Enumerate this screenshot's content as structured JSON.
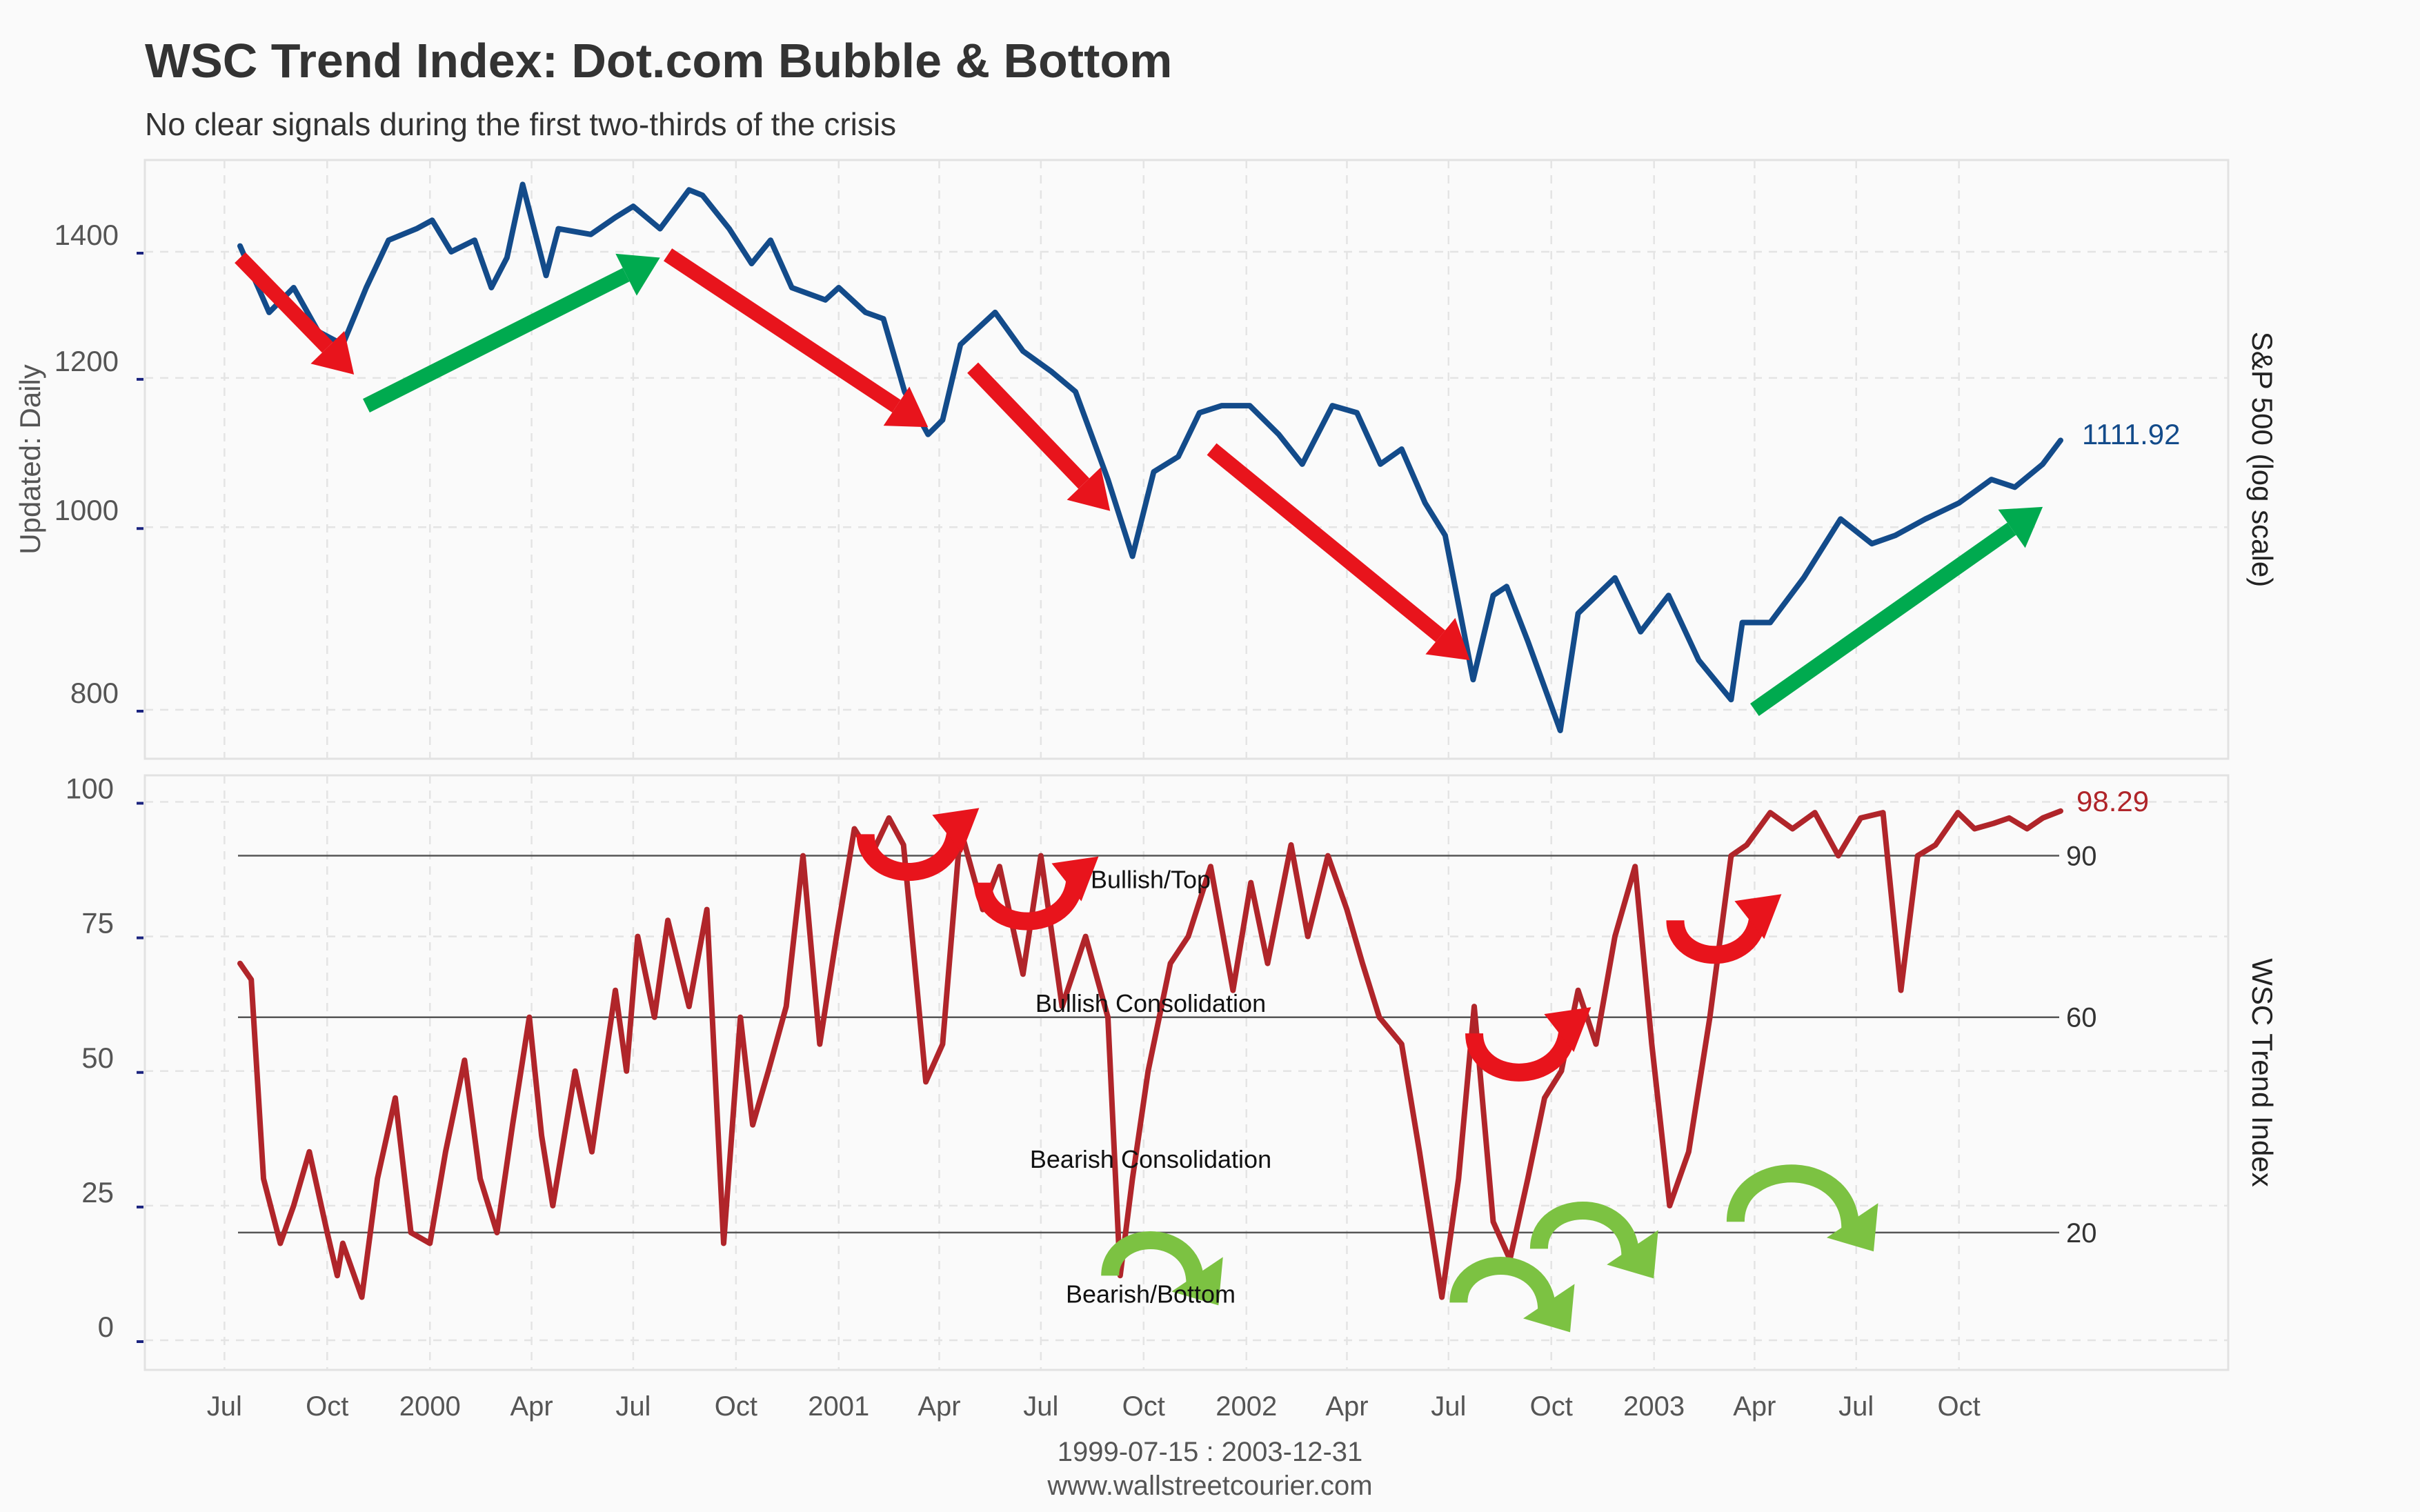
{
  "title": "WSC Trend Index: Dot.com Bubble & Bottom",
  "subtitle": "No clear signals during the first two-thirds of the crisis",
  "footer": {
    "range": "1999-07-15 : 2003-12-31",
    "site": "www.wallstreetcourier.com"
  },
  "colors": {
    "sp500": "#134b8a",
    "trend_index": "#b0252a",
    "bear_arrow": "#e8141c",
    "bull_arrow": "#00aa4f",
    "bottom_arrow": "#7cc242",
    "grid": "#e4e4e4",
    "background": "#fafafa"
  },
  "chart_data": [
    {
      "type": "line",
      "panel": "top",
      "ylabel": "S&P 500 (log scale)",
      "left_label": "Updated: Daily",
      "log_scale": true,
      "ylim": [
        750,
        1550
      ],
      "yticks": [
        800,
        1000,
        1200,
        1400
      ],
      "last_value_label": "1111.92",
      "x_tick_labels": [
        "Jul",
        "Oct",
        "2000",
        "Apr",
        "Jul",
        "Oct",
        "2001",
        "Apr",
        "Jul",
        "Oct",
        "2002",
        "Apr",
        "Jul",
        "Oct",
        "2003",
        "Apr",
        "Jul",
        "Oct"
      ],
      "grid": true,
      "series": [
        {
          "name": "S&P 500",
          "x": [
            "1999-07-15",
            "1999-08-10",
            "1999-09-01",
            "1999-09-23",
            "1999-10-15",
            "1999-11-05",
            "1999-11-25",
            "1999-12-20",
            "2000-01-03",
            "2000-01-20",
            "2000-02-10",
            "2000-02-25",
            "2000-03-10",
            "2000-03-24",
            "2000-04-14",
            "2000-04-25",
            "2000-05-24",
            "2000-06-15",
            "2000-07-01",
            "2000-07-25",
            "2000-08-20",
            "2000-09-01",
            "2000-09-25",
            "2000-10-15",
            "2000-11-01",
            "2000-11-20",
            "2000-12-20",
            "2001-01-01",
            "2001-01-25",
            "2001-02-10",
            "2001-03-01",
            "2001-03-22",
            "2001-04-04",
            "2001-04-20",
            "2001-05-21",
            "2001-06-15",
            "2001-07-10",
            "2001-08-01",
            "2001-08-30",
            "2001-09-21",
            "2001-10-10",
            "2001-11-01",
            "2001-11-20",
            "2001-12-10",
            "2002-01-04",
            "2002-01-30",
            "2002-02-20",
            "2002-03-19",
            "2002-04-10",
            "2002-05-01",
            "2002-05-20",
            "2002-06-10",
            "2002-06-28",
            "2002-07-23",
            "2002-08-10",
            "2002-08-22",
            "2002-09-10",
            "2002-10-09",
            "2002-10-25",
            "2002-11-27",
            "2002-12-20",
            "2003-01-14",
            "2003-02-10",
            "2003-03-11",
            "2003-03-21",
            "2003-04-15",
            "2003-05-15",
            "2003-06-17",
            "2003-07-15",
            "2003-08-05",
            "2003-09-01",
            "2003-10-01",
            "2003-10-30",
            "2003-11-20",
            "2003-12-15",
            "2003-12-31"
          ],
          "values": [
            1410,
            1300,
            1340,
            1270,
            1250,
            1340,
            1420,
            1440,
            1455,
            1400,
            1420,
            1340,
            1390,
            1520,
            1360,
            1440,
            1430,
            1460,
            1480,
            1440,
            1510,
            1500,
            1440,
            1380,
            1420,
            1340,
            1320,
            1340,
            1300,
            1290,
            1180,
            1120,
            1140,
            1250,
            1300,
            1240,
            1210,
            1180,
            1060,
            965,
            1070,
            1090,
            1150,
            1160,
            1160,
            1120,
            1080,
            1160,
            1150,
            1080,
            1100,
            1030,
            990,
            830,
            920,
            930,
            870,
            780,
            900,
            940,
            880,
            920,
            850,
            810,
            890,
            890,
            940,
            1010,
            980,
            990,
            1010,
            1030,
            1060,
            1050,
            1080,
            1111.92
          ]
        }
      ]
    },
    {
      "type": "line",
      "panel": "bottom",
      "ylabel": "WSC Trend Index",
      "ylim": [
        -5,
        105
      ],
      "yticks": [
        0,
        25,
        50,
        75,
        100
      ],
      "last_value_label": "98.29",
      "threshold_lines": [
        {
          "value": 90,
          "label": "90"
        },
        {
          "value": 60,
          "label": "60"
        },
        {
          "value": 20,
          "label": "20"
        }
      ],
      "zone_labels": [
        "Bullish/Top",
        "Bullish Consolidation",
        "Bearish Consolidation",
        "Bearish/Bottom"
      ],
      "grid": true,
      "series": [
        {
          "name": "WSC Trend Index",
          "x": [
            "1999-07-15",
            "1999-07-25",
            "1999-08-05",
            "1999-08-20",
            "1999-09-01",
            "1999-09-15",
            "1999-10-01",
            "1999-10-10",
            "1999-10-15",
            "1999-11-01",
            "1999-11-15",
            "1999-12-01",
            "1999-12-15",
            "2000-01-01",
            "2000-01-15",
            "2000-02-01",
            "2000-02-15",
            "2000-03-01",
            "2000-03-15",
            "2000-03-30",
            "2000-04-10",
            "2000-04-20",
            "2000-05-10",
            "2000-05-25",
            "2000-06-15",
            "2000-06-25",
            "2000-07-05",
            "2000-07-20",
            "2000-08-01",
            "2000-08-20",
            "2000-09-05",
            "2000-09-20",
            "2000-10-05",
            "2000-10-16",
            "2000-10-30",
            "2000-11-15",
            "2000-11-30",
            "2000-12-15",
            "2000-12-30",
            "2001-01-15",
            "2001-01-30",
            "2001-02-15",
            "2001-02-28",
            "2001-03-20",
            "2001-04-04",
            "2001-04-20",
            "2001-05-10",
            "2001-05-25",
            "2001-06-15",
            "2001-07-01",
            "2001-07-20",
            "2001-08-10",
            "2001-08-30",
            "2001-09-10",
            "2001-09-21",
            "2001-10-05",
            "2001-10-25",
            "2001-11-10",
            "2001-11-30",
            "2001-12-20",
            "2002-01-05",
            "2002-01-20",
            "2002-02-10",
            "2002-02-25",
            "2002-03-15",
            "2002-04-01",
            "2002-04-15",
            "2002-04-30",
            "2002-05-20",
            "2002-06-05",
            "2002-06-25",
            "2002-07-10",
            "2002-07-24",
            "2002-08-10",
            "2002-08-25",
            "2002-09-10",
            "2002-09-25",
            "2002-10-10",
            "2002-10-25",
            "2002-11-10",
            "2002-11-27",
            "2002-12-15",
            "2002-12-30",
            "2003-01-15",
            "2003-02-01",
            "2003-02-20",
            "2003-03-11",
            "2003-03-25",
            "2003-04-15",
            "2003-05-05",
            "2003-05-25",
            "2003-06-15",
            "2003-07-05",
            "2003-07-25",
            "2003-08-10",
            "2003-08-25",
            "2003-09-10",
            "2003-09-30",
            "2003-10-15",
            "2003-11-01",
            "2003-11-15",
            "2003-12-01",
            "2003-12-15",
            "2003-12-31"
          ],
          "values": [
            70,
            67,
            30,
            18,
            25,
            35,
            20,
            12,
            18,
            8,
            30,
            45,
            20,
            18,
            35,
            52,
            30,
            20,
            40,
            60,
            38,
            25,
            50,
            35,
            65,
            50,
            75,
            60,
            78,
            62,
            80,
            18,
            60,
            40,
            50,
            62,
            90,
            55,
            75,
            95,
            90,
            97,
            92,
            48,
            55,
            95,
            80,
            88,
            68,
            90,
            62,
            75,
            60,
            12,
            30,
            50,
            70,
            75,
            88,
            65,
            85,
            70,
            92,
            75,
            90,
            80,
            70,
            60,
            55,
            35,
            8,
            30,
            62,
            22,
            15,
            30,
            45,
            50,
            65,
            55,
            75,
            88,
            55,
            25,
            35,
            60,
            90,
            92,
            98,
            95,
            98,
            90,
            97,
            98,
            65,
            90,
            92,
            98,
            95,
            96,
            97,
            95,
            97,
            98.29
          ]
        }
      ]
    }
  ],
  "annotations": {
    "sp500_arrows": [
      {
        "kind": "bear",
        "from": [
          "1999-07-15",
          1390
        ],
        "to": [
          "1999-10-25",
          1205
        ]
      },
      {
        "kind": "bull",
        "from": [
          "1999-11-05",
          1160
        ],
        "to": [
          "2000-07-25",
          1390
        ]
      },
      {
        "kind": "bear",
        "from": [
          "2000-08-01",
          1395
        ],
        "to": [
          "2001-03-22",
          1130
        ]
      },
      {
        "kind": "bear",
        "from": [
          "2001-05-01",
          1215
        ],
        "to": [
          "2001-09-01",
          1020
        ]
      },
      {
        "kind": "bear",
        "from": [
          "2001-12-01",
          1100
        ],
        "to": [
          "2002-07-20",
          850
        ]
      },
      {
        "kind": "bull",
        "from": [
          "2003-04-01",
          800
        ],
        "to": [
          "2003-12-15",
          1025
        ]
      }
    ],
    "trend_arrows": [
      {
        "kind": "top",
        "x0": "2001-01-25",
        "x1": "2001-04-20",
        "y": 94
      },
      {
        "kind": "top",
        "x0": "2001-05-10",
        "x1": "2001-08-05",
        "y": 85
      },
      {
        "kind": "top",
        "x0": "2002-07-24",
        "x1": "2002-10-20",
        "y": 57
      },
      {
        "kind": "top",
        "x0": "2003-01-20",
        "x1": "2003-04-08",
        "y": 78
      },
      {
        "kind": "bottom",
        "x0": "2001-09-01",
        "x1": "2001-11-20",
        "y": 12
      },
      {
        "kind": "bottom",
        "x0": "2002-07-10",
        "x1": "2002-10-01",
        "y": 7
      },
      {
        "kind": "bottom",
        "x0": "2002-09-20",
        "x1": "2002-12-15",
        "y": 17
      },
      {
        "kind": "bottom",
        "x0": "2003-03-15",
        "x1": "2003-07-01",
        "y": 22
      }
    ]
  }
}
